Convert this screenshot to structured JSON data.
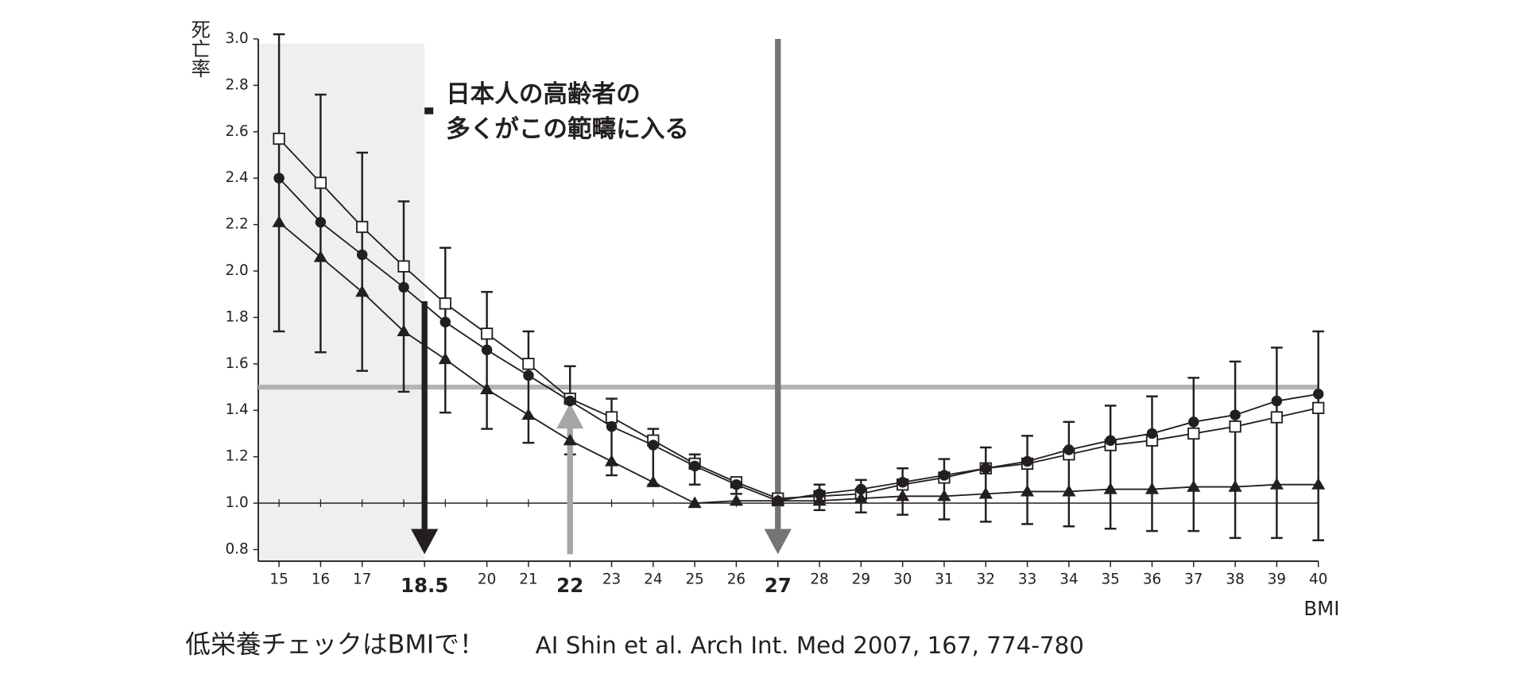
{
  "chart_data": {
    "type": "line",
    "ylabel": "死亡率",
    "xlabel": "BMI",
    "annotation": [
      "日本人の高齢者の",
      "多くがこの範疇に入る"
    ],
    "footer": "低栄養チェックはBMIで！",
    "citation": "AI Shin et al. Arch Int. Med 2007, 167, 774-780",
    "x": [
      15,
      16,
      17,
      18,
      19,
      20,
      21,
      22,
      23,
      24,
      25,
      26,
      27,
      28,
      29,
      30,
      31,
      32,
      33,
      34,
      35,
      36,
      37,
      38,
      39,
      40
    ],
    "series": [
      {
        "marker": "square",
        "color": "#231f20",
        "values": [
          2.57,
          2.38,
          2.19,
          2.02,
          1.86,
          1.73,
          1.6,
          1.45,
          1.37,
          1.27,
          1.17,
          1.09,
          1.02,
          1.03,
          1.04,
          1.08,
          1.11,
          1.15,
          1.17,
          1.21,
          1.25,
          1.27,
          1.3,
          1.33,
          1.37,
          1.41
        ]
      },
      {
        "marker": "circle",
        "color": "#231f20",
        "values": [
          2.4,
          2.21,
          2.07,
          1.93,
          1.78,
          1.66,
          1.55,
          1.44,
          1.33,
          1.25,
          1.16,
          1.08,
          1.01,
          1.04,
          1.06,
          1.09,
          1.12,
          1.15,
          1.18,
          1.23,
          1.27,
          1.3,
          1.35,
          1.38,
          1.44,
          1.47
        ]
      },
      {
        "marker": "triangle",
        "color": "#231f20",
        "values": [
          2.21,
          2.06,
          1.91,
          1.74,
          1.62,
          1.49,
          1.38,
          1.27,
          1.18,
          1.09,
          1.0,
          1.01,
          1.01,
          1.01,
          1.02,
          1.03,
          1.03,
          1.04,
          1.05,
          1.05,
          1.06,
          1.06,
          1.07,
          1.07,
          1.08,
          1.08
        ]
      }
    ],
    "error_bars": {
      "low": [
        1.74,
        1.65,
        1.57,
        1.48,
        1.39,
        1.32,
        1.26,
        1.21,
        1.12,
        1.08,
        1.08,
        1.04,
        0.99,
        0.97,
        0.96,
        0.95,
        0.93,
        0.92,
        0.91,
        0.9,
        0.89,
        0.88,
        0.88,
        0.85,
        0.85,
        0.84
      ],
      "high": [
        3.02,
        2.76,
        2.51,
        2.3,
        2.1,
        1.91,
        1.74,
        1.59,
        1.45,
        1.32,
        1.21,
        1.11,
        1.04,
        1.08,
        1.1,
        1.15,
        1.19,
        1.24,
        1.29,
        1.35,
        1.42,
        1.46,
        1.54,
        1.61,
        1.67,
        1.74
      ]
    },
    "xlim": [
      14.5,
      40
    ],
    "ylim": [
      0.75,
      3.0
    ],
    "xticks": [
      15,
      16,
      17,
      18.5,
      20,
      21,
      22,
      23,
      24,
      25,
      26,
      27,
      28,
      29,
      30,
      31,
      32,
      33,
      34,
      35,
      36,
      37,
      38,
      39,
      40
    ],
    "emphasized_xticks": [
      18.5,
      22,
      27
    ],
    "yticks": [
      0.8,
      {
        "value": 1.0,
        "label": "1.0"
      },
      1.2,
      1.4,
      1.6,
      1.8,
      {
        "value": 2.0,
        "label": "2.0"
      },
      2.2,
      2.4,
      2.6,
      2.8,
      {
        "value": 3.0,
        "label": "3.0"
      }
    ],
    "shaded_region": {
      "xlim": [
        14.5,
        18.5
      ],
      "ylim": [
        0.75,
        2.98
      ],
      "color": "#efefef"
    },
    "hline": {
      "value": 1.5,
      "color": "#b3b3b3"
    },
    "baseline": 1.0,
    "arrows": [
      {
        "x": 18.5,
        "from": 1.87,
        "to": 0.78,
        "color": "#231f20"
      },
      {
        "x": 22,
        "from": 0.78,
        "to": 1.43,
        "color": "#a6a6a6"
      },
      {
        "x": 27,
        "from": 3.0,
        "to": 0.78,
        "color": "#757575"
      }
    ]
  }
}
